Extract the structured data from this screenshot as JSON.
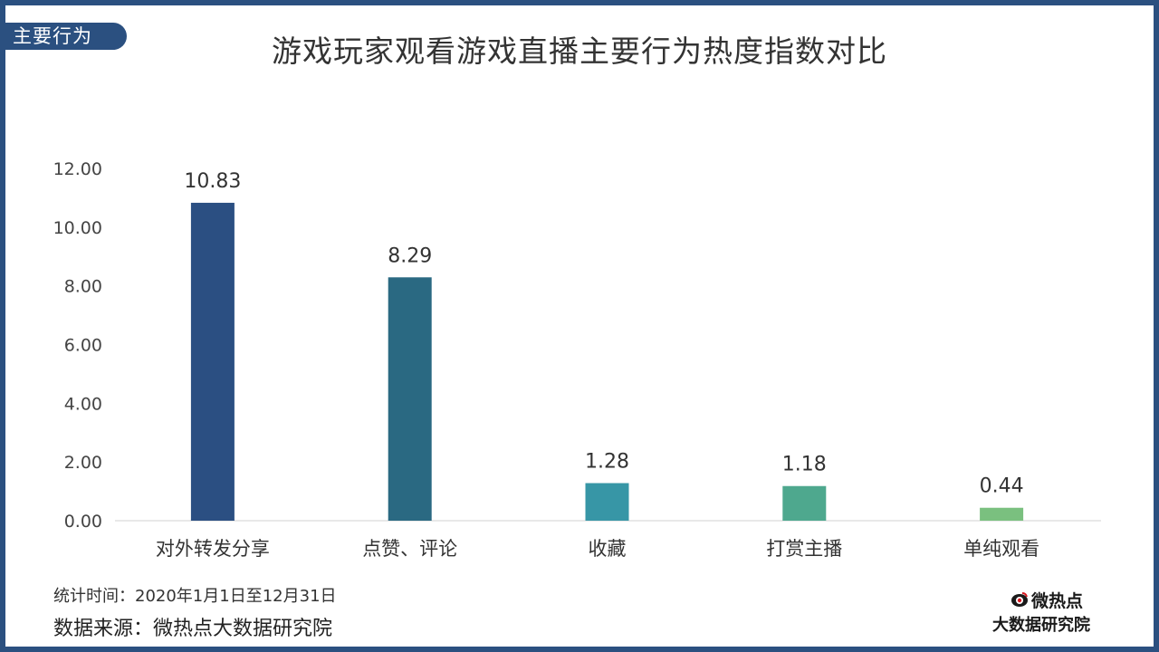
{
  "tag": "主要行为",
  "chart_data": {
    "type": "bar",
    "title": "游戏玩家观看游戏直播主要行为热度指数对比",
    "categories": [
      "对外转发分享",
      "点赞、评论",
      "收藏",
      "打赏主播",
      "单纯观看"
    ],
    "values": [
      10.83,
      8.29,
      1.28,
      1.18,
      0.44
    ],
    "bar_colors": [
      "#2b4f82",
      "#2a6982",
      "#3796a6",
      "#4ea88e",
      "#7ac07f"
    ],
    "ylim": [
      0,
      12
    ],
    "yticks": [
      "0.00",
      "2.00",
      "4.00",
      "6.00",
      "8.00",
      "10.00",
      "12.00"
    ],
    "grid": false,
    "xlabel": "",
    "ylabel": ""
  },
  "footer": {
    "period": "统计时间：2020年1月1日至12月31日",
    "source": "数据来源：微热点大数据研究院"
  },
  "logo": {
    "brand": "微热点",
    "institute": "大数据研究院",
    "icon": "weiredian-eye-icon"
  }
}
